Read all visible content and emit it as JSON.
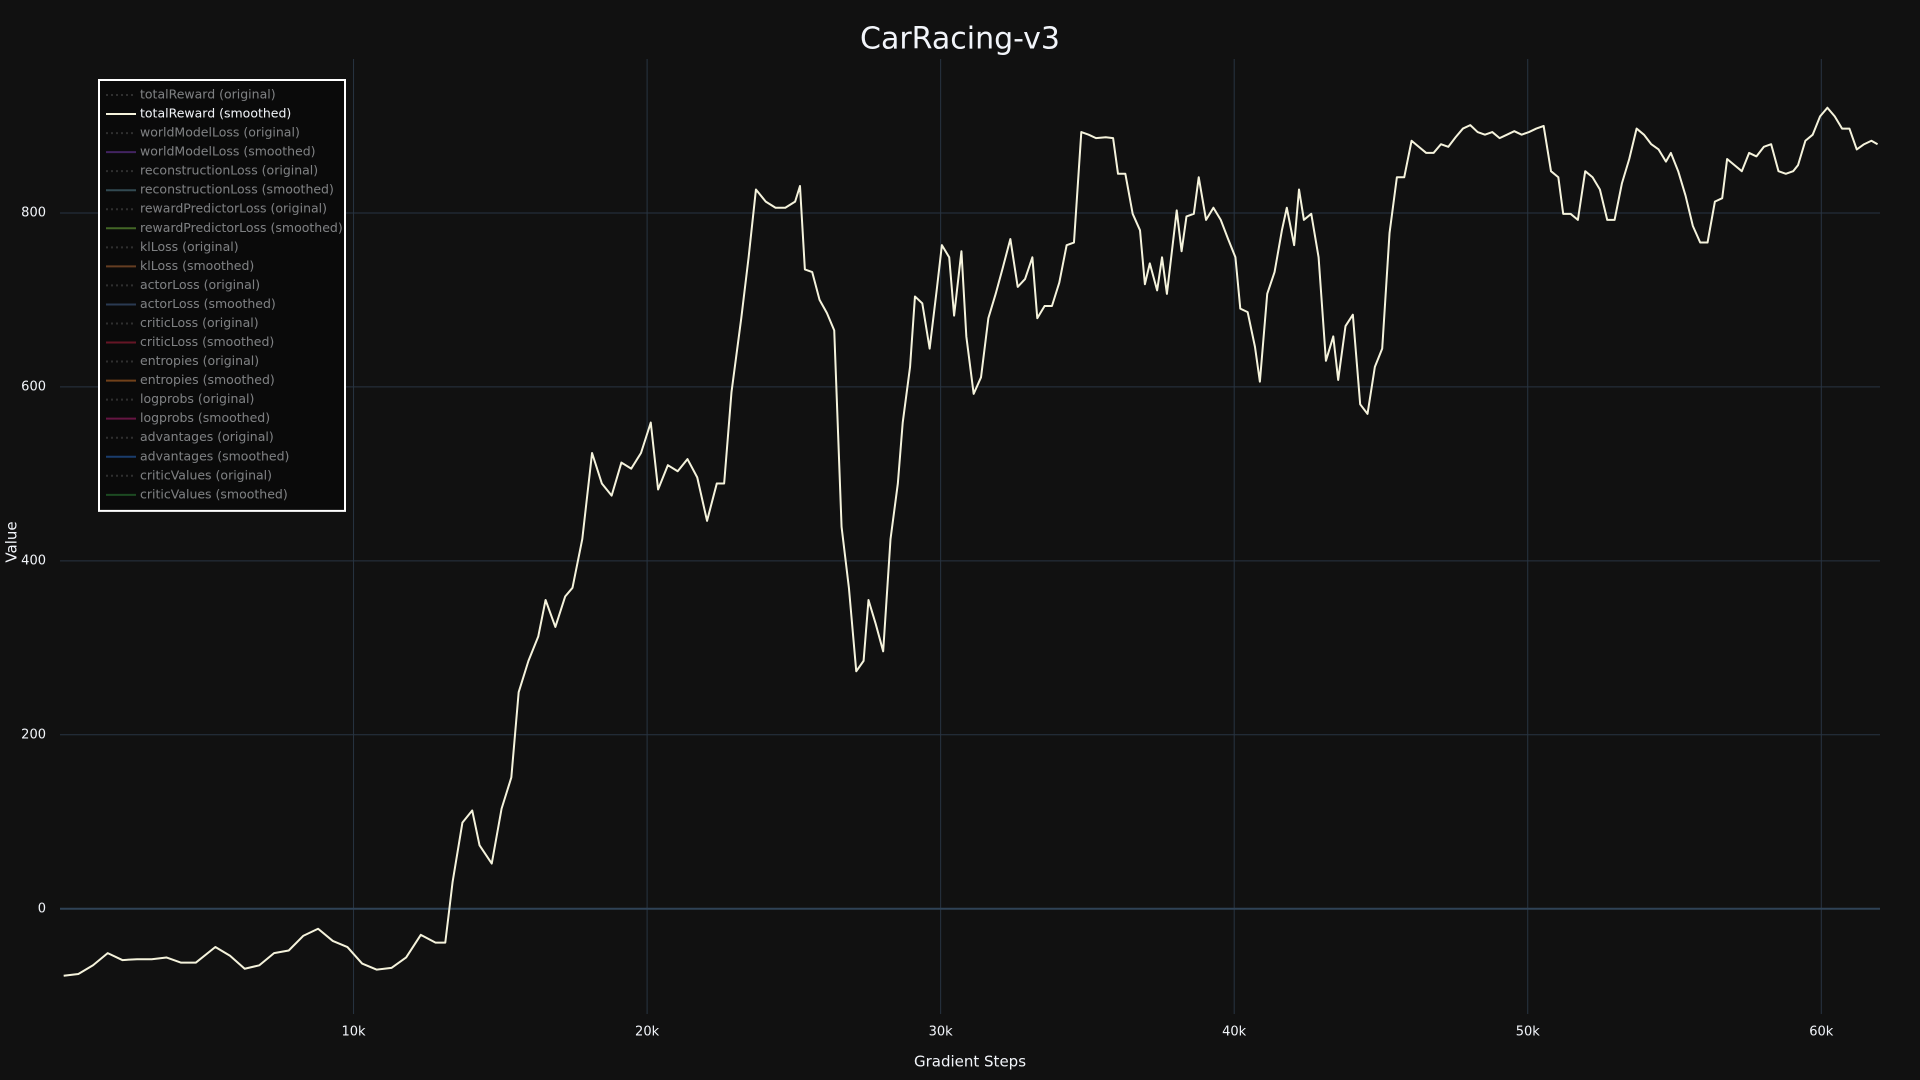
{
  "chart_data": {
    "type": "line",
    "title": "CarRacing-v3",
    "xlabel": "Gradient Steps",
    "ylabel": "Value",
    "xlim": [
      0,
      62000
    ],
    "ylim": [
      -121,
      977
    ],
    "xticks": [
      {
        "value": 10000,
        "label": "10k"
      },
      {
        "value": 20000,
        "label": "20k"
      },
      {
        "value": 30000,
        "label": "30k"
      },
      {
        "value": 40000,
        "label": "40k"
      },
      {
        "value": 50000,
        "label": "50k"
      },
      {
        "value": 60000,
        "label": "60k"
      }
    ],
    "yticks": [
      0,
      200,
      400,
      600,
      800
    ],
    "grid": true,
    "zeroline": true,
    "legend": "upper left",
    "x": [
      125,
      625,
      1125,
      1625,
      2125,
      2625,
      3125,
      3625,
      4125,
      4625,
      5292,
      5792,
      6292,
      6792,
      7292,
      7792,
      8292,
      8792,
      9292,
      9792,
      10292,
      10792,
      11292,
      11792,
      12292,
      12792,
      13125,
      13375,
      13708,
      14042,
      14292,
      14708,
      15042,
      15375,
      15625,
      15958,
      16292,
      16542,
      16875,
      17208,
      17458,
      17792,
      18125,
      18458,
      18792,
      19125,
      19458,
      19792,
      20125,
      20375,
      20708,
      21042,
      21375,
      21708,
      22042,
      22375,
      22625,
      22875,
      23208,
      23458,
      23708,
      24042,
      24375,
      24708,
      25042,
      25208,
      25375,
      25625,
      25875,
      26125,
      26375,
      26625,
      26875,
      27125,
      27375,
      27542,
      27792,
      28042,
      28292,
      28542,
      28708,
      28958,
      29125,
      29375,
      29625,
      29875,
      30042,
      30292,
      30458,
      30708,
      30875,
      31125,
      31375,
      31625,
      31875,
      32125,
      32375,
      32625,
      32875,
      33125,
      33292,
      33542,
      33792,
      34042,
      34292,
      34542,
      34792,
      35042,
      35292,
      35625,
      35875,
      36042,
      36292,
      36542,
      36792,
      36958,
      37125,
      37375,
      37542,
      37708,
      38042,
      38208,
      38375,
      38625,
      38792,
      39042,
      39292,
      39542,
      39792,
      40042,
      40208,
      40458,
      40708,
      40875,
      41125,
      41375,
      41625,
      41792,
      42042,
      42208,
      42375,
      42625,
      42875,
      43125,
      43375,
      43542,
      43792,
      44042,
      44292,
      44542,
      44792,
      45042,
      45292,
      45542,
      45792,
      46042,
      46292,
      46542,
      46792,
      47042,
      47292,
      47542,
      47792,
      48042,
      48292,
      48542,
      48792,
      49042,
      49292,
      49542,
      49792,
      50042,
      50292,
      50542,
      50792,
      51042,
      51208,
      51458,
      51708,
      51958,
      52208,
      52458,
      52708,
      52958,
      53208,
      53458,
      53708,
      53958,
      54208,
      54458,
      54708,
      54875,
      55125,
      55375,
      55625,
      55875,
      56125,
      56375,
      56625,
      56792,
      57042,
      57292,
      57542,
      57792,
      58042,
      58292,
      58542,
      58792,
      59042,
      59208,
      59458,
      59708,
      59958,
      60208,
      60458,
      60708,
      60958,
      61208,
      61458,
      61708,
      61917
    ],
    "series": [
      {
        "name": "totalReward (original)",
        "color": "#555555",
        "dash": "dot",
        "visible": "legendonly"
      },
      {
        "name": "totalReward (smoothed)",
        "color": "#f5f3dc",
        "dash": "solid",
        "visible": true,
        "values": [
          -77,
          -75,
          -65,
          -51,
          -59,
          -58,
          -58,
          -56,
          -62,
          -62,
          -44,
          -54,
          -69,
          -65,
          -51,
          -48,
          -31,
          -23,
          -37,
          -44,
          -63,
          -70,
          -68,
          -56,
          -30,
          -39,
          -39,
          31,
          99,
          113,
          73,
          52,
          115,
          151,
          249,
          285,
          313,
          355,
          324,
          359,
          369,
          425,
          524,
          489,
          475,
          513,
          506,
          524,
          559,
          482,
          510,
          503,
          517,
          496,
          446,
          489,
          489,
          594,
          679,
          749,
          827,
          813,
          806,
          806,
          813,
          831,
          735,
          732,
          700,
          685,
          665,
          439,
          369,
          273,
          285,
          355,
          327,
          296,
          425,
          489,
          559,
          623,
          704,
          696,
          644,
          714,
          763,
          749,
          682,
          756,
          658,
          592,
          611,
          679,
          707,
          738,
          770,
          715,
          724,
          749,
          679,
          693,
          693,
          720,
          763,
          766,
          893,
          890,
          886,
          887,
          886,
          845,
          845,
          799,
          780,
          718,
          742,
          711,
          749,
          707,
          803,
          756,
          796,
          799,
          841,
          792,
          806,
          792,
          770,
          749,
          690,
          686,
          646,
          606,
          707,
          732,
          780,
          806,
          763,
          827,
          792,
          799,
          749,
          630,
          658,
          608,
          670,
          683,
          580,
          569,
          623,
          644,
          777,
          841,
          841,
          883,
          876,
          869,
          869,
          879,
          876,
          887,
          897,
          901,
          893,
          890,
          893,
          886,
          890,
          894,
          890,
          893,
          897,
          900,
          848,
          841,
          799,
          799,
          792,
          848,
          841,
          827,
          792,
          792,
          834,
          862,
          897,
          890,
          879,
          873,
          859,
          869,
          848,
          820,
          785,
          766,
          766,
          813,
          817,
          862,
          855,
          848,
          869,
          865,
          876,
          879,
          848,
          845,
          848,
          855,
          883,
          890,
          911,
          921,
          911,
          897,
          897,
          873,
          879,
          883,
          879
        ]
      },
      {
        "name": "worldModelLoss (original)",
        "color": "#555555",
        "dash": "dot",
        "visible": "legendonly"
      },
      {
        "name": "worldModelLoss (smoothed)",
        "color": "#7b3fb8",
        "dash": "solid",
        "visible": "legendonly"
      },
      {
        "name": "reconstructionLoss (original)",
        "color": "#555555",
        "dash": "dot",
        "visible": "legendonly"
      },
      {
        "name": "reconstructionLoss (smoothed)",
        "color": "#5a8a9a",
        "dash": "solid",
        "visible": "legendonly"
      },
      {
        "name": "rewardPredictorLoss (original)",
        "color": "#555555",
        "dash": "dot",
        "visible": "legendonly"
      },
      {
        "name": "rewardPredictorLoss (smoothed)",
        "color": "#7cc242",
        "dash": "solid",
        "visible": "legendonly"
      },
      {
        "name": "klLoss (original)",
        "color": "#555555",
        "dash": "dot",
        "visible": "legendonly"
      },
      {
        "name": "klLoss (smoothed)",
        "color": "#c0703a",
        "dash": "solid",
        "visible": "legendonly"
      },
      {
        "name": "actorLoss (original)",
        "color": "#555555",
        "dash": "dot",
        "visible": "legendonly"
      },
      {
        "name": "actorLoss (smoothed)",
        "color": "#4a6a9a",
        "dash": "solid",
        "visible": "legendonly"
      },
      {
        "name": "criticLoss (original)",
        "color": "#555555",
        "dash": "dot",
        "visible": "legendonly"
      },
      {
        "name": "criticLoss (smoothed)",
        "color": "#c02040",
        "dash": "solid",
        "visible": "legendonly"
      },
      {
        "name": "entropies (original)",
        "color": "#555555",
        "dash": "dot",
        "visible": "legendonly"
      },
      {
        "name": "entropies (smoothed)",
        "color": "#d8782a",
        "dash": "solid",
        "visible": "legendonly"
      },
      {
        "name": "logprobs (original)",
        "color": "#555555",
        "dash": "dot",
        "visible": "legendonly"
      },
      {
        "name": "logprobs (smoothed)",
        "color": "#c0207a",
        "dash": "solid",
        "visible": "legendonly"
      },
      {
        "name": "advantages (original)",
        "color": "#555555",
        "dash": "dot",
        "visible": "legendonly"
      },
      {
        "name": "advantages (smoothed)",
        "color": "#2a70d0",
        "dash": "solid",
        "visible": "legendonly"
      },
      {
        "name": "criticValues (original)",
        "color": "#555555",
        "dash": "dot",
        "visible": "legendonly"
      },
      {
        "name": "criticValues (smoothed)",
        "color": "#2e8a3a",
        "dash": "solid",
        "visible": "legendonly"
      }
    ]
  }
}
